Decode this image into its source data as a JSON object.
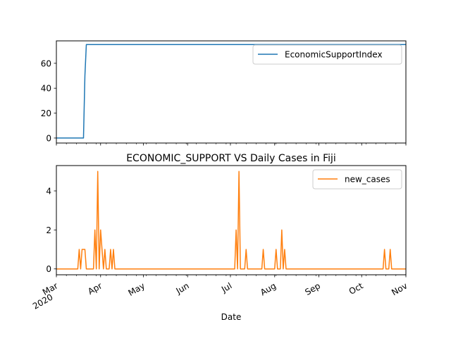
{
  "chart_data": [
    {
      "type": "line",
      "title": "",
      "xlabel": "",
      "ylabel": "",
      "x_range": [
        "2020-03-01",
        "2020-11-01"
      ],
      "ylim": [
        -4,
        78
      ],
      "yticks": [
        0,
        20,
        40,
        60
      ],
      "grid": false,
      "legend_position": "top-right",
      "series": [
        {
          "name": "EconomicSupportIndex",
          "color": "#1f77b4",
          "points": [
            [
              "2020-03-01",
              0
            ],
            [
              "2020-03-20",
              0
            ],
            [
              "2020-03-21",
              50
            ],
            [
              "2020-03-22",
              75
            ],
            [
              "2020-11-01",
              75
            ]
          ]
        }
      ]
    },
    {
      "type": "line",
      "title": "ECONOMIC_SUPPORT VS Daily Cases in Fiji",
      "xlabel": "Date",
      "ylabel": "",
      "x_range": [
        "2020-03-01",
        "2020-11-01"
      ],
      "ylim": [
        -0.3,
        5.3
      ],
      "yticks": [
        0,
        2,
        4
      ],
      "grid": false,
      "legend_position": "top-right",
      "series": [
        {
          "name": "new_cases",
          "color": "#ff7f0e",
          "points": [
            [
              "2020-03-01",
              0
            ],
            [
              "2020-03-16",
              0
            ],
            [
              "2020-03-17",
              1
            ],
            [
              "2020-03-18",
              0
            ],
            [
              "2020-03-19",
              1
            ],
            [
              "2020-03-21",
              1
            ],
            [
              "2020-03-22",
              0
            ],
            [
              "2020-03-27",
              0
            ],
            [
              "2020-03-28",
              2
            ],
            [
              "2020-03-29",
              0
            ],
            [
              "2020-03-30",
              5
            ],
            [
              "2020-03-31",
              0
            ],
            [
              "2020-04-01",
              2
            ],
            [
              "2020-04-02",
              1
            ],
            [
              "2020-04-03",
              0
            ],
            [
              "2020-04-04",
              1
            ],
            [
              "2020-04-05",
              0
            ],
            [
              "2020-04-07",
              0
            ],
            [
              "2020-04-08",
              1
            ],
            [
              "2020-04-09",
              0
            ],
            [
              "2020-04-10",
              1
            ],
            [
              "2020-04-11",
              0
            ],
            [
              "2020-07-04",
              0
            ],
            [
              "2020-07-05",
              2
            ],
            [
              "2020-07-06",
              0
            ],
            [
              "2020-07-07",
              5
            ],
            [
              "2020-07-08",
              0
            ],
            [
              "2020-07-11",
              0
            ],
            [
              "2020-07-12",
              1
            ],
            [
              "2020-07-13",
              0
            ],
            [
              "2020-07-23",
              0
            ],
            [
              "2020-07-24",
              1
            ],
            [
              "2020-07-25",
              0
            ],
            [
              "2020-08-01",
              0
            ],
            [
              "2020-08-02",
              1
            ],
            [
              "2020-08-03",
              0
            ],
            [
              "2020-08-05",
              0
            ],
            [
              "2020-08-06",
              2
            ],
            [
              "2020-08-07",
              0
            ],
            [
              "2020-08-08",
              1
            ],
            [
              "2020-08-09",
              0
            ],
            [
              "2020-10-16",
              0
            ],
            [
              "2020-10-17",
              1
            ],
            [
              "2020-10-18",
              0
            ],
            [
              "2020-10-20",
              0
            ],
            [
              "2020-10-21",
              1
            ],
            [
              "2020-10-22",
              0
            ],
            [
              "2020-11-01",
              0
            ]
          ]
        }
      ]
    }
  ],
  "x_axis": {
    "major_ticks": [
      {
        "date": "2020-03-01",
        "label": "Mar",
        "label2": "2020"
      },
      {
        "date": "2020-04-01",
        "label": "Apr",
        "label2": ""
      },
      {
        "date": "2020-05-01",
        "label": "May",
        "label2": ""
      },
      {
        "date": "2020-06-01",
        "label": "Jun",
        "label2": ""
      },
      {
        "date": "2020-07-01",
        "label": "Jul",
        "label2": ""
      },
      {
        "date": "2020-08-01",
        "label": "Aug",
        "label2": ""
      },
      {
        "date": "2020-09-01",
        "label": "Sep",
        "label2": ""
      },
      {
        "date": "2020-10-01",
        "label": "Oct",
        "label2": ""
      },
      {
        "date": "2020-11-01",
        "label": "Nov",
        "label2": ""
      }
    ]
  }
}
